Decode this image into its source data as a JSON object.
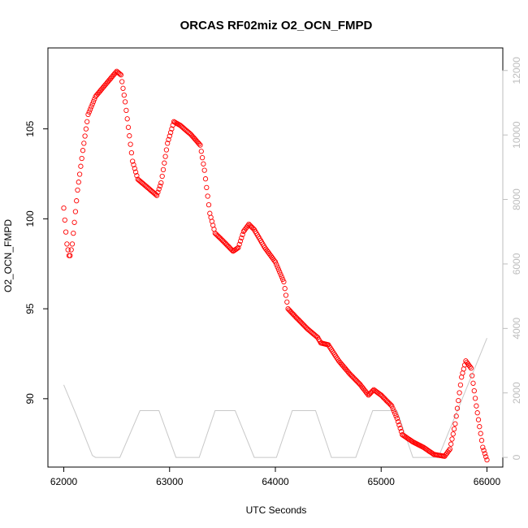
{
  "chart_data": {
    "type": "scatter",
    "title": "ORCAS RF02miz O2_OCN_FMPD",
    "xlabel": "UTC Seconds",
    "ylabel": "O2_OCN_FMPD",
    "xlim": [
      61850,
      66150
    ],
    "ylim": [
      86.2,
      109.5
    ],
    "y2lim": [
      -300,
      12700
    ],
    "x_ticks": [
      62000,
      63000,
      64000,
      65000,
      66000
    ],
    "y_ticks": [
      90,
      95,
      100,
      105
    ],
    "y2_ticks": [
      0,
      2000,
      4000,
      6000,
      8000,
      10000,
      12000
    ],
    "grid": false,
    "series": [
      {
        "marker": "open-circle",
        "color": "#ff0000",
        "axis": "left",
        "keypoints": [
          [
            62000,
            100.6
          ],
          [
            62030,
            98.6
          ],
          [
            62055,
            97.8
          ],
          [
            62080,
            98.6
          ],
          [
            62130,
            101.6
          ],
          [
            62180,
            103.8
          ],
          [
            62230,
            105.8
          ],
          [
            62300,
            106.8
          ],
          [
            62400,
            107.5
          ],
          [
            62500,
            108.2
          ],
          [
            62540,
            108.0
          ],
          [
            62580,
            106.5
          ],
          [
            62650,
            103.2
          ],
          [
            62700,
            102.2
          ],
          [
            62800,
            101.7
          ],
          [
            62880,
            101.3
          ],
          [
            62920,
            102.0
          ],
          [
            62980,
            104.2
          ],
          [
            63040,
            105.4
          ],
          [
            63100,
            105.2
          ],
          [
            63200,
            104.7
          ],
          [
            63290,
            104.1
          ],
          [
            63330,
            102.7
          ],
          [
            63380,
            100.3
          ],
          [
            63430,
            99.2
          ],
          [
            63500,
            98.8
          ],
          [
            63600,
            98.2
          ],
          [
            63650,
            98.4
          ],
          [
            63700,
            99.3
          ],
          [
            63750,
            99.7
          ],
          [
            63800,
            99.4
          ],
          [
            63900,
            98.4
          ],
          [
            64000,
            97.6
          ],
          [
            64080,
            96.5
          ],
          [
            64120,
            95.0
          ],
          [
            64200,
            94.5
          ],
          [
            64300,
            93.9
          ],
          [
            64400,
            93.4
          ],
          [
            64430,
            93.1
          ],
          [
            64500,
            93.0
          ],
          [
            64600,
            92.1
          ],
          [
            64700,
            91.4
          ],
          [
            64800,
            90.8
          ],
          [
            64880,
            90.2
          ],
          [
            64930,
            90.5
          ],
          [
            65000,
            90.2
          ],
          [
            65100,
            89.6
          ],
          [
            65150,
            88.9
          ],
          [
            65200,
            88.0
          ],
          [
            65300,
            87.6
          ],
          [
            65400,
            87.3
          ],
          [
            65500,
            86.9
          ],
          [
            65600,
            86.8
          ],
          [
            65650,
            87.2
          ],
          [
            65700,
            88.6
          ],
          [
            65760,
            91.2
          ],
          [
            65800,
            92.1
          ],
          [
            65850,
            91.7
          ],
          [
            65900,
            89.6
          ],
          [
            65960,
            87.3
          ],
          [
            66000,
            86.6
          ]
        ]
      },
      {
        "marker": "line",
        "color": "#c8c8c8",
        "axis": "right",
        "points": [
          [
            62000,
            2250
          ],
          [
            62120,
            1300
          ],
          [
            62270,
            60
          ],
          [
            62300,
            0
          ],
          [
            62530,
            0
          ],
          [
            62720,
            1450
          ],
          [
            62900,
            1450
          ],
          [
            63060,
            0
          ],
          [
            63280,
            0
          ],
          [
            63430,
            1450
          ],
          [
            63620,
            1450
          ],
          [
            63800,
            0
          ],
          [
            64010,
            0
          ],
          [
            64160,
            1450
          ],
          [
            64380,
            1450
          ],
          [
            64530,
            0
          ],
          [
            64760,
            0
          ],
          [
            64920,
            1450
          ],
          [
            65150,
            1450
          ],
          [
            65300,
            0
          ],
          [
            65540,
            0
          ],
          [
            66000,
            3700
          ]
        ]
      }
    ]
  }
}
